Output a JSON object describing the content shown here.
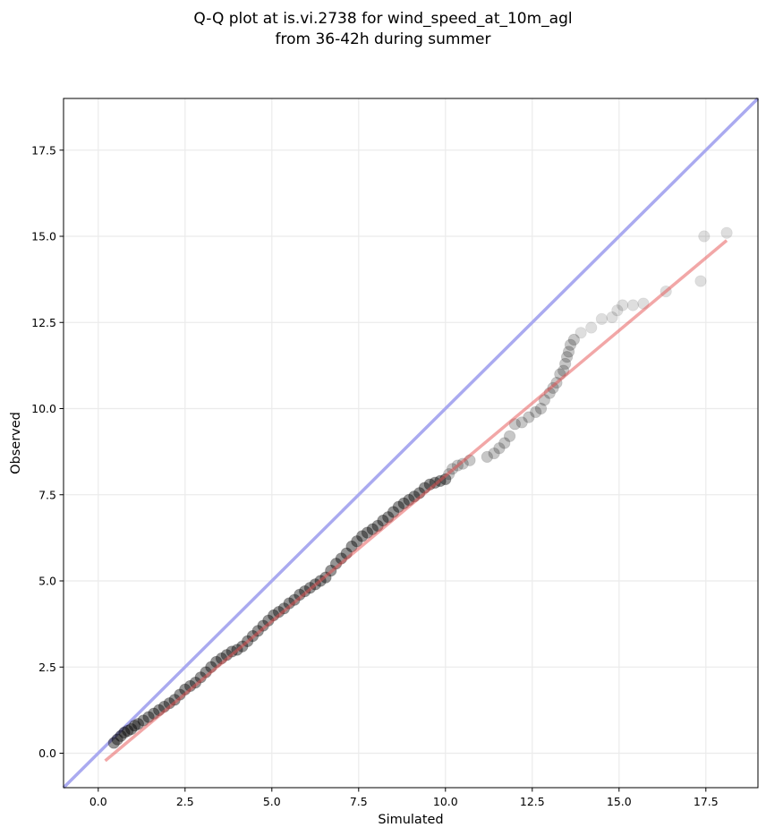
{
  "chart_data": {
    "type": "scatter",
    "title": [
      "Q-Q plot at is.vi.2738 for wind_speed_at_10m_agl",
      "from 36-42h during summer"
    ],
    "xlabel": "Simulated",
    "ylabel": "Observed",
    "xlim": [
      -1,
      19
    ],
    "ylim": [
      -1,
      19
    ],
    "xticks": [
      0.0,
      2.5,
      5.0,
      7.5,
      10.0,
      12.5,
      15.0,
      17.5
    ],
    "yticks": [
      0.0,
      2.5,
      5.0,
      7.5,
      10.0,
      12.5,
      15.0,
      17.5
    ],
    "tick_labels": [
      "0.0",
      "2.5",
      "5.0",
      "7.5",
      "10.0",
      "12.5",
      "15.0",
      "17.5"
    ],
    "grid": true,
    "legend": "none",
    "identity_line": {
      "from": [
        -1,
        -1
      ],
      "to": [
        19,
        19
      ],
      "color": "#aaaaf0"
    },
    "fit_line": {
      "from": [
        0.2,
        -0.22
      ],
      "to": [
        18.1,
        14.88
      ],
      "color": "#f2a5a5"
    },
    "colors": {
      "points": "#000000",
      "identity_line": "#aaaaf0",
      "fit_line": "#f2a5a5",
      "grid": "#ebebeb"
    },
    "points": {
      "x": [
        0.45,
        0.55,
        0.65,
        0.75,
        0.85,
        0.95,
        1.05,
        1.15,
        1.3,
        1.45,
        1.6,
        1.75,
        1.9,
        2.05,
        2.2,
        2.35,
        2.5,
        2.65,
        2.8,
        2.95,
        3.1,
        3.25,
        3.4,
        3.55,
        3.7,
        3.85,
        4.0,
        4.15,
        4.3,
        4.45,
        4.6,
        4.75,
        4.9,
        5.05,
        5.2,
        5.35,
        5.5,
        5.65,
        5.8,
        5.95,
        6.1,
        6.25,
        6.4,
        6.55,
        6.7,
        6.85,
        7.0,
        7.15,
        7.3,
        7.45,
        7.6,
        7.75,
        7.9,
        8.05,
        8.2,
        8.35,
        8.5,
        8.65,
        8.8,
        8.95,
        9.1,
        9.25,
        9.4,
        9.55,
        9.7,
        9.85,
        10.0,
        10.1,
        10.2,
        10.35,
        10.5,
        10.7,
        11.2,
        11.4,
        11.55,
        11.7,
        11.85,
        12.0,
        12.2,
        12.4,
        12.6,
        12.75,
        12.85,
        13.0,
        13.1,
        13.2,
        13.3,
        13.4,
        13.45,
        13.5,
        13.55,
        13.6,
        13.7,
        13.9,
        14.2,
        14.5,
        14.8,
        14.95,
        15.1,
        15.4,
        15.7,
        16.35,
        17.35,
        17.45,
        18.1
      ],
      "y": [
        0.3,
        0.4,
        0.5,
        0.6,
        0.65,
        0.7,
        0.8,
        0.85,
        0.95,
        1.05,
        1.15,
        1.25,
        1.35,
        1.45,
        1.55,
        1.7,
        1.85,
        1.95,
        2.05,
        2.2,
        2.35,
        2.5,
        2.65,
        2.75,
        2.85,
        2.95,
        3.0,
        3.1,
        3.25,
        3.4,
        3.55,
        3.7,
        3.85,
        4.0,
        4.1,
        4.2,
        4.35,
        4.45,
        4.6,
        4.7,
        4.8,
        4.9,
        5.0,
        5.1,
        5.3,
        5.5,
        5.65,
        5.8,
        6.0,
        6.15,
        6.3,
        6.4,
        6.5,
        6.6,
        6.75,
        6.85,
        7.0,
        7.15,
        7.25,
        7.35,
        7.45,
        7.55,
        7.7,
        7.8,
        7.85,
        7.9,
        7.95,
        8.1,
        8.25,
        8.35,
        8.4,
        8.5,
        8.6,
        8.7,
        8.85,
        9.0,
        9.2,
        9.55,
        9.6,
        9.75,
        9.9,
        10.0,
        10.25,
        10.45,
        10.6,
        10.75,
        11.0,
        11.1,
        11.3,
        11.5,
        11.65,
        11.85,
        12.0,
        12.2,
        12.35,
        12.6,
        12.65,
        12.85,
        13.0,
        13.0,
        13.05,
        13.4,
        13.7,
        15.0,
        15.1
      ]
    }
  }
}
